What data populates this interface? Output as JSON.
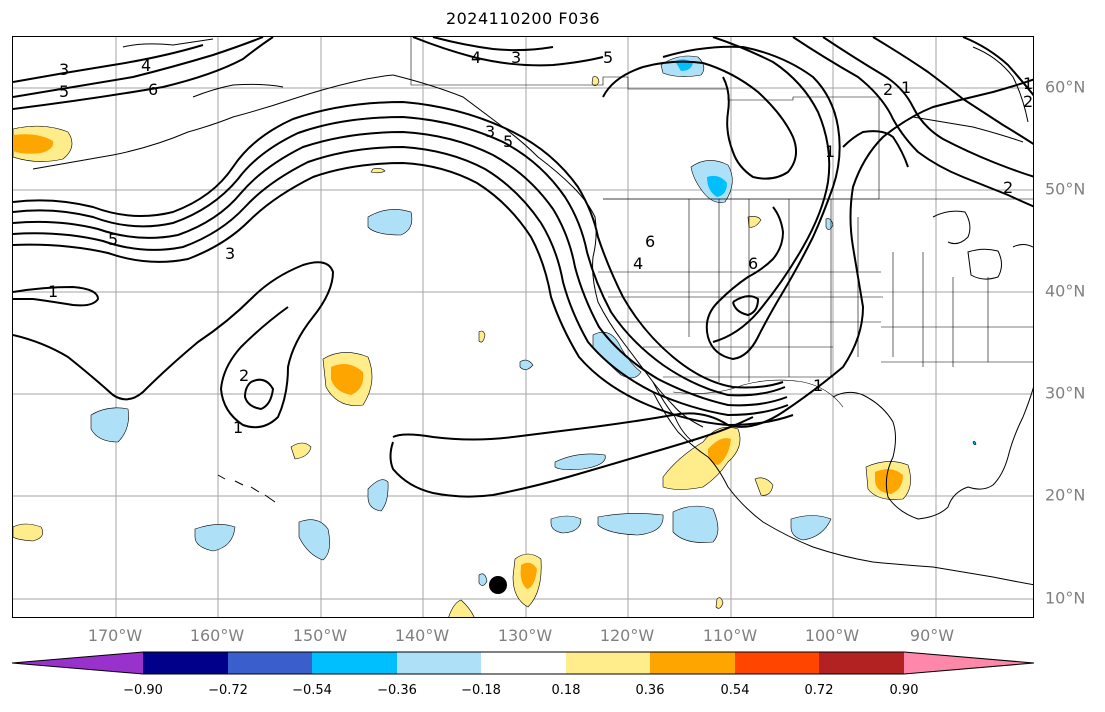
{
  "title": "2024110200 F036",
  "map": {
    "lon_labels": [
      "170°W",
      "160°W",
      "150°W",
      "140°W",
      "130°W",
      "120°W",
      "110°W",
      "100°W",
      "90°W"
    ],
    "lat_labels": [
      "60°N",
      "50°N",
      "40°N",
      "30°N",
      "20°N",
      "10°N"
    ],
    "contour_labels": [
      "3",
      "4",
      "5",
      "6",
      "3",
      "5",
      "1",
      "2",
      "1",
      "1",
      "2",
      "1",
      "2",
      "3",
      "4",
      "5",
      "6",
      "3",
      "4",
      "5",
      "6",
      "1",
      "1",
      "2"
    ],
    "colors": {
      "land": "#000000",
      "grid": "#808080",
      "contour": "#000000",
      "marker": "#000000"
    }
  },
  "colorbar": {
    "ticks": [
      "−0.90",
      "−0.72",
      "−0.54",
      "−0.36",
      "−0.18",
      "0.18",
      "0.36",
      "0.54",
      "0.72",
      "0.90"
    ],
    "colors": [
      "#9932CC",
      "#00008B",
      "#3A5FCD",
      "#00BFFF",
      "#AEE1F8",
      "#FFFFFF",
      "#FFEC8B",
      "#FFA500",
      "#FF4500",
      "#B22222",
      "#FF88AA"
    ]
  }
}
